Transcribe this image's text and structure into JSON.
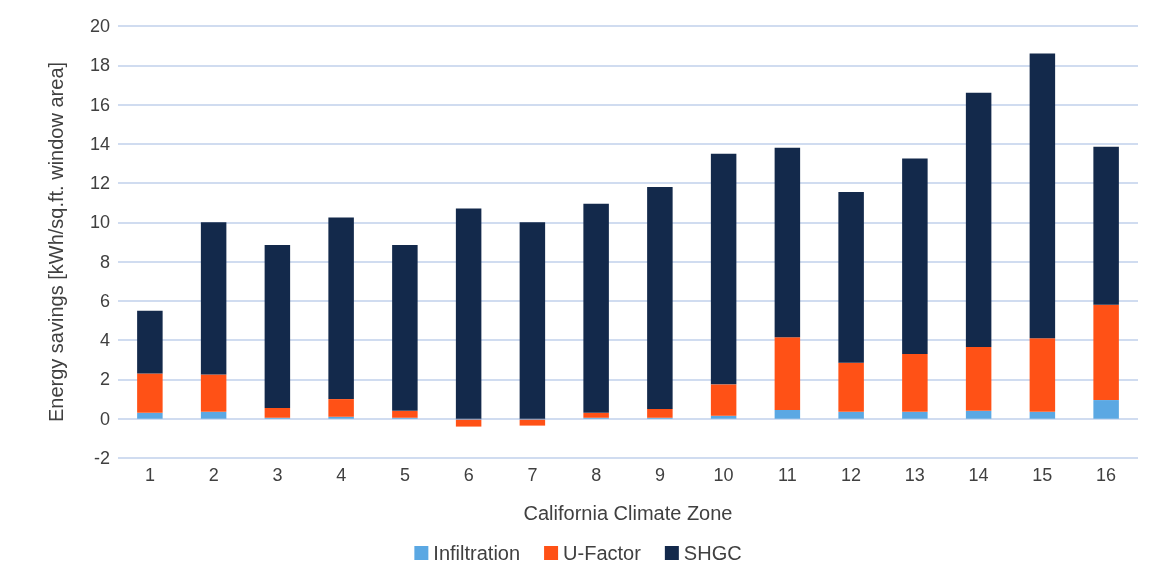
{
  "chart_data": {
    "type": "bar",
    "stacked": true,
    "xlabel": "California Climate Zone",
    "ylabel": "Energy savings [kWh/sq.ft. window area]",
    "categories": [
      "1",
      "2",
      "3",
      "4",
      "5",
      "6",
      "7",
      "8",
      "9",
      "10",
      "11",
      "12",
      "13",
      "14",
      "15",
      "16"
    ],
    "series": [
      {
        "name": "Infiltration",
        "color": "#5ba8e3",
        "values": [
          0.3,
          0.35,
          0.05,
          0.1,
          0.05,
          -0.05,
          -0.05,
          0.05,
          0.05,
          0.15,
          0.45,
          0.35,
          0.35,
          0.4,
          0.35,
          0.95
        ]
      },
      {
        "name": "U-Factor",
        "color": "#ff5116",
        "values": [
          2.0,
          1.9,
          0.5,
          0.9,
          0.35,
          -0.35,
          -0.3,
          0.25,
          0.45,
          1.6,
          3.7,
          2.5,
          2.95,
          3.25,
          3.75,
          4.85
        ]
      },
      {
        "name": "SHGC",
        "color": "#13294b",
        "values": [
          3.2,
          7.75,
          8.3,
          9.25,
          8.45,
          10.7,
          10.0,
          10.65,
          11.3,
          11.75,
          9.65,
          8.7,
          9.95,
          12.95,
          14.5,
          8.05
        ]
      }
    ],
    "ylim": [
      -2,
      20
    ],
    "yticks": [
      -2,
      0,
      2,
      4,
      6,
      8,
      10,
      12,
      14,
      16,
      18,
      20
    ],
    "grid": "y",
    "legend": "bottom"
  }
}
